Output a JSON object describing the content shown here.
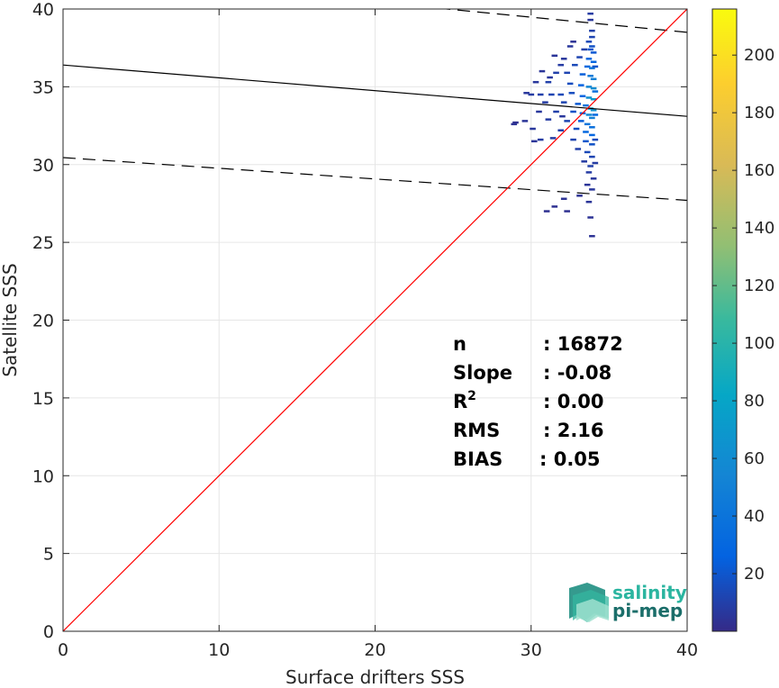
{
  "chart_data": {
    "type": "heatmap",
    "xlabel": "Surface drifters SSS",
    "ylabel": "Satellite SSS",
    "xlim": [
      0,
      40
    ],
    "ylim": [
      0,
      40
    ],
    "x_ticks": [
      0,
      10,
      20,
      30,
      40
    ],
    "y_ticks": [
      0,
      5,
      10,
      15,
      20,
      25,
      30,
      35,
      40
    ],
    "grid": true,
    "colormap": "parula",
    "colorbar": {
      "range": [
        0,
        216
      ],
      "ticks": [
        20,
        40,
        60,
        80,
        100,
        120,
        140,
        160,
        180,
        200
      ],
      "placement": "right"
    },
    "stats": [
      {
        "key": "n",
        "sep": ":",
        "value": "16872"
      },
      {
        "key": "Slope",
        "sep": ":",
        "value": "-0.08"
      },
      {
        "key": "R",
        "sup": "2",
        "sep": ":",
        "value": "0.00"
      },
      {
        "key": "RMS",
        "sep": ":",
        "value": "2.16"
      },
      {
        "key": "BIAS",
        "sep": ":",
        "value": "0.05"
      }
    ],
    "lines": {
      "one_to_one": {
        "from": [
          0,
          0
        ],
        "to": [
          40,
          40
        ],
        "color": "#ff0000"
      },
      "regression": {
        "from": [
          0,
          36.4
        ],
        "to": [
          40,
          33.1
        ],
        "color": "#000000"
      },
      "upper_bound": {
        "from": [
          0,
          42.4
        ],
        "to": [
          40,
          38.5
        ],
        "color": "#000000",
        "style": "dashed"
      },
      "lower_bound": {
        "from": [
          0,
          30.45
        ],
        "to": [
          40,
          27.7
        ],
        "color": "#000000",
        "style": "dashed"
      }
    },
    "cells": [
      [
        33.7,
        39.7,
        8
      ],
      [
        33.7,
        39.3,
        6
      ],
      [
        33.8,
        38.6,
        10
      ],
      [
        33.8,
        38.2,
        12
      ],
      [
        33.6,
        37.9,
        14
      ],
      [
        33.8,
        37.6,
        18
      ],
      [
        32.4,
        37.6,
        6
      ],
      [
        33.3,
        37.4,
        10
      ],
      [
        33.7,
        37.4,
        20
      ],
      [
        33.9,
        37.2,
        22
      ],
      [
        31.4,
        37.0,
        5
      ],
      [
        32.0,
        36.8,
        6
      ],
      [
        33.0,
        36.9,
        12
      ],
      [
        33.6,
        36.8,
        30
      ],
      [
        33.9,
        36.6,
        28
      ],
      [
        31.8,
        36.4,
        8
      ],
      [
        32.7,
        36.4,
        14
      ],
      [
        33.5,
        36.3,
        32
      ],
      [
        33.8,
        36.2,
        40
      ],
      [
        30.6,
        36.0,
        5
      ],
      [
        31.5,
        35.9,
        10
      ],
      [
        32.2,
        35.9,
        12
      ],
      [
        33.2,
        35.8,
        24
      ],
      [
        33.7,
        35.7,
        45
      ],
      [
        33.9,
        35.5,
        50
      ],
      [
        30.2,
        35.3,
        6
      ],
      [
        31.0,
        35.3,
        10
      ],
      [
        32.4,
        35.2,
        16
      ],
      [
        33.1,
        35.1,
        26
      ],
      [
        33.6,
        35.0,
        55
      ],
      [
        33.9,
        34.9,
        60
      ],
      [
        29.9,
        34.5,
        8
      ],
      [
        30.5,
        34.5,
        10
      ],
      [
        31.2,
        34.5,
        12
      ],
      [
        31.8,
        34.5,
        14
      ],
      [
        32.5,
        34.6,
        16
      ],
      [
        33.2,
        34.4,
        28
      ],
      [
        33.6,
        34.3,
        62
      ],
      [
        33.9,
        34.2,
        70
      ],
      [
        30.8,
        34.0,
        8
      ],
      [
        32.0,
        34.0,
        12
      ],
      [
        32.9,
        33.9,
        22
      ],
      [
        33.4,
        33.8,
        40
      ],
      [
        33.7,
        33.6,
        72
      ],
      [
        33.9,
        33.5,
        65
      ],
      [
        30.4,
        33.4,
        6
      ],
      [
        31.5,
        33.4,
        10
      ],
      [
        32.6,
        33.4,
        18
      ],
      [
        33.2,
        33.3,
        30
      ],
      [
        33.6,
        33.2,
        58
      ],
      [
        33.8,
        33.0,
        50
      ],
      [
        29.5,
        32.8,
        5
      ],
      [
        31.0,
        32.9,
        8
      ],
      [
        32.2,
        32.8,
        12
      ],
      [
        33.1,
        32.8,
        24
      ],
      [
        33.5,
        32.6,
        42
      ],
      [
        33.8,
        32.4,
        36
      ],
      [
        28.8,
        32.6,
        4
      ],
      [
        30.0,
        32.3,
        6
      ],
      [
        31.8,
        32.2,
        10
      ],
      [
        32.8,
        32.3,
        16
      ],
      [
        33.4,
        32.1,
        30
      ],
      [
        33.8,
        31.9,
        28
      ],
      [
        30.5,
        31.6,
        8
      ],
      [
        31.3,
        31.7,
        8
      ],
      [
        32.6,
        31.6,
        12
      ],
      [
        33.4,
        31.5,
        20
      ],
      [
        33.8,
        31.3,
        18
      ],
      [
        32.9,
        31.0,
        10
      ],
      [
        33.5,
        30.8,
        14
      ],
      [
        33.8,
        30.5,
        12
      ],
      [
        33.3,
        30.2,
        8
      ],
      [
        33.7,
        29.9,
        10
      ],
      [
        33.6,
        29.5,
        8
      ],
      [
        33.9,
        29.1,
        6
      ],
      [
        33.5,
        28.7,
        5
      ],
      [
        33.8,
        28.4,
        6
      ],
      [
        33.0,
        28.0,
        4
      ],
      [
        32.0,
        27.8,
        4
      ],
      [
        33.6,
        27.6,
        5
      ],
      [
        31.4,
        27.3,
        3
      ],
      [
        30.9,
        27.0,
        3
      ],
      [
        32.2,
        27.0,
        3
      ],
      [
        33.7,
        26.6,
        4
      ],
      [
        33.8,
        25.4,
        4
      ],
      [
        34.0,
        36.3,
        20
      ],
      [
        34.0,
        34.7,
        35
      ],
      [
        34.0,
        33.2,
        30
      ],
      [
        34.0,
        31.6,
        15
      ],
      [
        34.0,
        30.1,
        8
      ],
      [
        31.1,
        35.6,
        6
      ],
      [
        30.1,
        31.5,
        5
      ],
      [
        28.9,
        32.7,
        3
      ],
      [
        29.6,
        34.6,
        6
      ],
      [
        32.6,
        37.9,
        4
      ],
      [
        31.9,
        33.1,
        6
      ]
    ]
  },
  "logo": {
    "line1": "salinity",
    "line2": "pi-mep",
    "color_top": "#2bb5a0",
    "color_bottom": "#1b6e6a"
  }
}
